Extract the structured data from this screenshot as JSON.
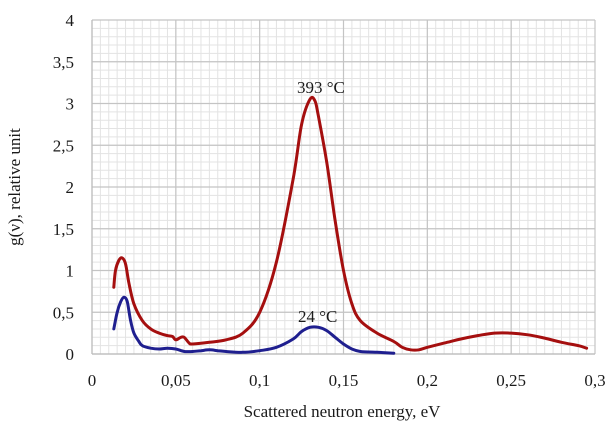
{
  "chart_data": {
    "type": "line",
    "xlabel": "Scattered neutron energy, eV",
    "ylabel": "g(ν), relative unit",
    "xlim": [
      0,
      0.3
    ],
    "ylim": [
      0,
      4
    ],
    "x_ticks": [
      0,
      0.05,
      0.1,
      0.15,
      0.2,
      0.25,
      0.3
    ],
    "x_tick_labels": [
      "0",
      "0,05",
      "0,1",
      "0,15",
      "0,2",
      "0,25",
      "0,3"
    ],
    "y_ticks": [
      0,
      0.5,
      1,
      1.5,
      2,
      2.5,
      3,
      3.5,
      4
    ],
    "y_tick_labels": [
      "0",
      "0,5",
      "1",
      "1,5",
      "2",
      "2,5",
      "3",
      "3,5",
      "4"
    ],
    "grid": true,
    "minor_grid": true,
    "legend": "none",
    "series": [
      {
        "color": "#a50f0f",
        "annotation": "393 °C",
        "points": [
          [
            0.013,
            0.8
          ],
          [
            0.014,
            1.0
          ],
          [
            0.016,
            1.12
          ],
          [
            0.018,
            1.15
          ],
          [
            0.02,
            1.08
          ],
          [
            0.022,
            0.85
          ],
          [
            0.025,
            0.6
          ],
          [
            0.03,
            0.4
          ],
          [
            0.035,
            0.3
          ],
          [
            0.04,
            0.25
          ],
          [
            0.045,
            0.22
          ],
          [
            0.048,
            0.21
          ],
          [
            0.05,
            0.17
          ],
          [
            0.053,
            0.2
          ],
          [
            0.055,
            0.2
          ],
          [
            0.058,
            0.13
          ],
          [
            0.06,
            0.12
          ],
          [
            0.07,
            0.14
          ],
          [
            0.08,
            0.17
          ],
          [
            0.09,
            0.25
          ],
          [
            0.1,
            0.5
          ],
          [
            0.11,
            1.1
          ],
          [
            0.12,
            2.1
          ],
          [
            0.125,
            2.75
          ],
          [
            0.13,
            3.05
          ],
          [
            0.133,
            3.03
          ],
          [
            0.135,
            2.85
          ],
          [
            0.14,
            2.3
          ],
          [
            0.145,
            1.6
          ],
          [
            0.15,
            1.0
          ],
          [
            0.155,
            0.6
          ],
          [
            0.16,
            0.4
          ],
          [
            0.17,
            0.25
          ],
          [
            0.18,
            0.15
          ],
          [
            0.185,
            0.08
          ],
          [
            0.19,
            0.05
          ],
          [
            0.195,
            0.05
          ],
          [
            0.2,
            0.08
          ],
          [
            0.21,
            0.13
          ],
          [
            0.22,
            0.18
          ],
          [
            0.23,
            0.22
          ],
          [
            0.24,
            0.25
          ],
          [
            0.25,
            0.25
          ],
          [
            0.26,
            0.23
          ],
          [
            0.27,
            0.19
          ],
          [
            0.28,
            0.14
          ],
          [
            0.29,
            0.1
          ],
          [
            0.295,
            0.07
          ]
        ]
      },
      {
        "color": "#1f1f8f",
        "annotation": "24 °C",
        "points": [
          [
            0.013,
            0.3
          ],
          [
            0.015,
            0.5
          ],
          [
            0.017,
            0.62
          ],
          [
            0.019,
            0.68
          ],
          [
            0.021,
            0.63
          ],
          [
            0.023,
            0.4
          ],
          [
            0.025,
            0.25
          ],
          [
            0.028,
            0.15
          ],
          [
            0.03,
            0.1
          ],
          [
            0.035,
            0.07
          ],
          [
            0.04,
            0.06
          ],
          [
            0.045,
            0.07
          ],
          [
            0.05,
            0.06
          ],
          [
            0.055,
            0.03
          ],
          [
            0.06,
            0.03
          ],
          [
            0.065,
            0.04
          ],
          [
            0.07,
            0.05
          ],
          [
            0.075,
            0.04
          ],
          [
            0.08,
            0.03
          ],
          [
            0.09,
            0.02
          ],
          [
            0.1,
            0.04
          ],
          [
            0.11,
            0.08
          ],
          [
            0.12,
            0.18
          ],
          [
            0.125,
            0.27
          ],
          [
            0.13,
            0.32
          ],
          [
            0.135,
            0.32
          ],
          [
            0.14,
            0.28
          ],
          [
            0.145,
            0.2
          ],
          [
            0.15,
            0.12
          ],
          [
            0.155,
            0.06
          ],
          [
            0.16,
            0.03
          ],
          [
            0.17,
            0.02
          ],
          [
            0.18,
            0.01
          ]
        ]
      }
    ]
  }
}
